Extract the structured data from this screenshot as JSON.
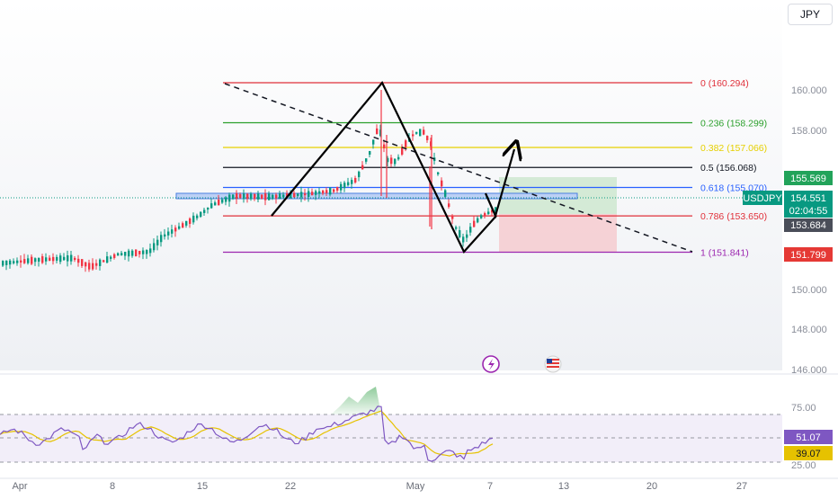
{
  "toolbar": {
    "currency": "JPY"
  },
  "price_axis": {
    "labels": [
      {
        "text": "160.000",
        "value": 160.0
      },
      {
        "text": "158.000",
        "value": 158.0
      },
      {
        "text": "150.000",
        "value": 150.0
      },
      {
        "text": "148.000",
        "value": 148.0
      },
      {
        "text": "146.000",
        "value": 146.0
      }
    ]
  },
  "fib_levels": [
    {
      "label": "0 (160.294)",
      "value": 160.294,
      "color": "#e0303a"
    },
    {
      "label": "0.236 (158.299)",
      "value": 158.299,
      "color": "#2ca02c"
    },
    {
      "label": "0.382 (157.066)",
      "value": 157.066,
      "color": "#e6d000"
    },
    {
      "label": "0.5 (156.068)",
      "value": 156.068,
      "color": "#131722"
    },
    {
      "label": "0.618 (155.070)",
      "value": 155.07,
      "color": "#2962ff"
    },
    {
      "label": "0.786 (153.650)",
      "value": 153.65,
      "color": "#e0303a"
    },
    {
      "label": "1 (151.841)",
      "value": 151.841,
      "color": "#9c27b0"
    }
  ],
  "price_badges": {
    "target": {
      "text": "155.569",
      "value": 155.569,
      "color": "#22a35a"
    },
    "symbol": "USDJPY",
    "current": {
      "text": "154.551",
      "value": 154.551,
      "color": "#089981"
    },
    "countdown": "02:04:55",
    "entry": {
      "text": "153.684",
      "value": 153.684,
      "color": "#4a4e59"
    },
    "stop": {
      "text": "151.799",
      "value": 151.799,
      "color": "#e53935"
    }
  },
  "rsi": {
    "labels": [
      {
        "text": "75.00",
        "value": 75
      },
      {
        "text": "25.00",
        "value": 25
      }
    ],
    "value_badge": {
      "text": "51.07",
      "value": 51.07,
      "color": "#7e57c2"
    },
    "ma_badge": {
      "text": "39.07",
      "value": 39.07,
      "color": "#e6c200"
    }
  },
  "time_axis": [
    "Apr",
    "8",
    "15",
    "22",
    "May",
    "7",
    "13",
    "20",
    "27"
  ],
  "events": [
    {
      "name": "lightning-icon"
    },
    {
      "name": "us-flag-icon"
    }
  ],
  "colors": {
    "up": "#089981",
    "down": "#f23645",
    "rsi_line": "#7e57c2",
    "rsi_ma": "#e6c200",
    "profit_zone": "#c8e6c9",
    "loss_zone": "#f5c6cb"
  }
}
